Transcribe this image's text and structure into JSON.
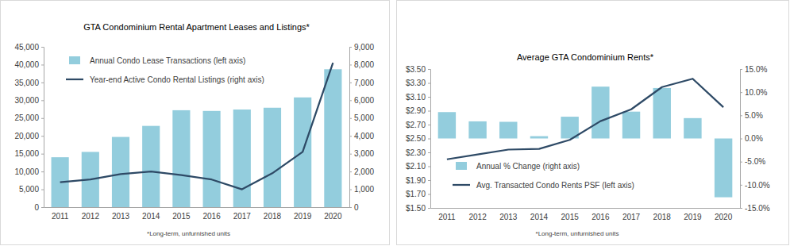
{
  "chart_data": [
    {
      "type": "bar",
      "title": "GTA Condominium Rental Apartment Leases and Listings*",
      "footnote": "*Long-term, unfurnished units",
      "categories": [
        "2011",
        "2012",
        "2013",
        "2014",
        "2015",
        "2016",
        "2017",
        "2018",
        "2019",
        "2020"
      ],
      "series": [
        {
          "name": "Annual Condo Lease Transactions (left axis)",
          "type": "bar",
          "color": "#93cddd",
          "axis": "y",
          "values": [
            14000,
            15500,
            19700,
            22800,
            27200,
            27000,
            27400,
            27900,
            30800,
            38700
          ]
        },
        {
          "name": "Year-end Active Condo Rental Listings (right axis)",
          "type": "line",
          "color": "#2e4a66",
          "axis": "y2",
          "values": [
            1400,
            1550,
            1850,
            2000,
            1800,
            1550,
            1000,
            1900,
            3100,
            8100
          ]
        }
      ],
      "ylim": [
        0,
        45000
      ],
      "yticks": [
        0,
        {
          "value": 5000,
          "label": "5,000"
        },
        {
          "value": 10000,
          "label": "10,000"
        },
        {
          "value": 15000,
          "label": "15,000"
        },
        {
          "value": 20000,
          "label": "20,000"
        },
        {
          "value": 25000,
          "label": "25,000"
        },
        {
          "value": 30000,
          "label": "30,000"
        },
        {
          "value": 35000,
          "label": "35,000"
        },
        {
          "value": 40000,
          "label": "40,000"
        },
        {
          "value": 45000,
          "label": "45,000"
        }
      ],
      "y2lim": [
        0,
        9000
      ],
      "y2ticks": [
        0,
        {
          "value": 1000,
          "label": "1,000"
        },
        {
          "value": 2000,
          "label": "2,000"
        },
        {
          "value": 3000,
          "label": "3,000"
        },
        {
          "value": 4000,
          "label": "4,000"
        },
        {
          "value": 5000,
          "label": "5,000"
        },
        {
          "value": 6000,
          "label": "6,000"
        },
        {
          "value": 7000,
          "label": "7,000"
        },
        {
          "value": 8000,
          "label": "8,000"
        },
        {
          "value": 9000,
          "label": "9,000"
        }
      ],
      "grid": false,
      "legend": "top-left"
    },
    {
      "type": "bar",
      "title": "Average GTA Condominium Rents*",
      "footnote": "*Long-term, unfurnished units",
      "categories": [
        "2011",
        "2012",
        "2013",
        "2014",
        "2015",
        "2016",
        "2017",
        "2018",
        "2019",
        "2020"
      ],
      "series": [
        {
          "name": "Annual % Change (right axis)",
          "type": "bar",
          "color": "#93cddd",
          "axis": "y2",
          "values": [
            5.7,
            3.7,
            3.6,
            0.5,
            4.7,
            11.2,
            5.8,
            10.9,
            4.4,
            -12.7
          ]
        },
        {
          "name": "Avg. Transacted Condo Rents PSF (left axis)",
          "type": "line",
          "color": "#2e4a66",
          "axis": "y",
          "values": [
            2.2,
            2.27,
            2.34,
            2.35,
            2.48,
            2.75,
            2.92,
            3.24,
            3.36,
            2.95
          ]
        }
      ],
      "ylim": [
        1.5,
        3.5
      ],
      "yticks": [
        {
          "value": 1.5,
          "label": "$1.50"
        },
        {
          "value": 1.7,
          "label": "$1.70"
        },
        {
          "value": 1.9,
          "label": "$1.90"
        },
        {
          "value": 2.1,
          "label": "$2.10"
        },
        {
          "value": 2.3,
          "label": "$2.30"
        },
        {
          "value": 2.5,
          "label": "$2.50"
        },
        {
          "value": 2.7,
          "label": "$2.70"
        },
        {
          "value": 2.9,
          "label": "$2.90"
        },
        {
          "value": 3.1,
          "label": "$3.10"
        },
        {
          "value": 3.3,
          "label": "$3.30"
        },
        {
          "value": 3.5,
          "label": "$3.50"
        }
      ],
      "y2lim": [
        -15,
        15
      ],
      "y2ticks": [
        {
          "value": -15,
          "label": "-15.0%"
        },
        {
          "value": -10,
          "label": "-10.0%"
        },
        {
          "value": -5,
          "label": "-5.0%"
        },
        {
          "value": 0,
          "label": "0.0%"
        },
        {
          "value": 5,
          "label": "5.0%"
        },
        {
          "value": 10,
          "label": "10.0%"
        },
        {
          "value": 15,
          "label": "15.0%"
        }
      ],
      "grid": false,
      "legend": "bottom-left"
    }
  ]
}
